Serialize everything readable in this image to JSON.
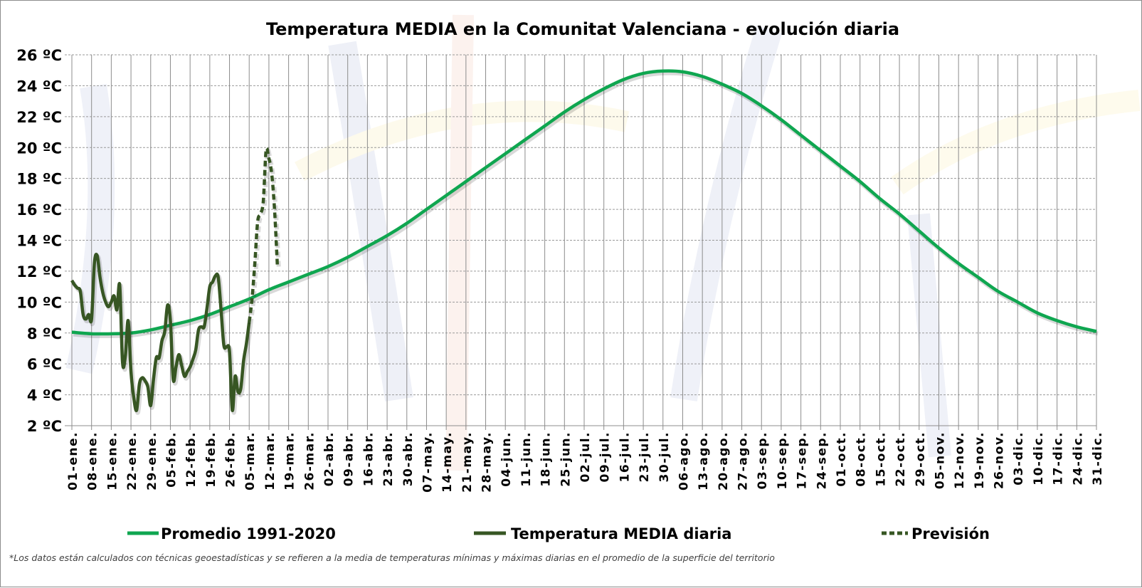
{
  "chart_data": {
    "type": "line",
    "title": "Temperatura MEDIA en la Comunitat Valenciana - evolución diaria",
    "xlabel": "",
    "ylabel": "",
    "ylim": [
      2,
      26
    ],
    "yticks": [
      "2 ºC",
      "4 ºC",
      "6 ºC",
      "8 ºC",
      "10 ºC",
      "12 ºC",
      "14 ºC",
      "16 ºC",
      "18 ºC",
      "20 ºC",
      "22 ºC",
      "24 ºC",
      "26 ºC"
    ],
    "ytick_values": [
      2,
      4,
      6,
      8,
      10,
      12,
      14,
      16,
      18,
      20,
      22,
      24,
      26
    ],
    "x_unit": "day of year",
    "xlim": [
      1,
      365
    ],
    "grid": true,
    "legend_position": "bottom",
    "xtick_labels": [
      "01-ene.",
      "08-ene.",
      "15-ene.",
      "22-ene.",
      "29-ene.",
      "05-feb.",
      "12-feb.",
      "19-feb.",
      "26-feb.",
      "05-mar.",
      "12-mar.",
      "19-mar.",
      "26-mar.",
      "02-abr.",
      "09-abr.",
      "16-abr.",
      "23-abr.",
      "30-abr.",
      "07-may.",
      "14-may.",
      "21-may.",
      "28-may.",
      "04-jun.",
      "11-jun.",
      "18-jun.",
      "25-jun.",
      "02-jul.",
      "09-jul.",
      "16-jul.",
      "23-jul.",
      "30-jul.",
      "06-ago.",
      "13-ago.",
      "20-ago.",
      "27-ago.",
      "03-sep.",
      "10-sep.",
      "17-sep.",
      "24-sep.",
      "01-oct.",
      "08-oct.",
      "15-oct.",
      "22-oct.",
      "29-oct.",
      "05-nov.",
      "12-nov.",
      "19-nov.",
      "26-nov.",
      "03-dic.",
      "10-dic.",
      "17-dic.",
      "24-dic.",
      "31-dic."
    ],
    "series": [
      {
        "name": "Promedio 1991-2020",
        "color": "#0fa650",
        "style": "solid",
        "x_start_day": 1,
        "x_step_days": 7,
        "values": [
          8.05,
          7.95,
          7.95,
          8.0,
          8.2,
          8.5,
          8.8,
          9.2,
          9.7,
          10.2,
          10.8,
          11.3,
          11.8,
          12.3,
          12.9,
          13.6,
          14.3,
          15.1,
          16.0,
          16.9,
          17.8,
          18.7,
          19.6,
          20.5,
          21.4,
          22.3,
          23.1,
          23.8,
          24.4,
          24.8,
          24.95,
          24.9,
          24.6,
          24.1,
          23.5,
          22.7,
          21.8,
          20.8,
          19.8,
          18.8,
          17.8,
          16.7,
          15.7,
          14.6,
          13.5,
          12.5,
          11.6,
          10.7,
          10.0,
          9.3,
          8.8,
          8.4,
          8.1
        ]
      },
      {
        "name": "Temperatura MEDIA diaria",
        "color": "#375623",
        "style": "solid",
        "x_start_day": 1,
        "x_step_days": 1,
        "values": [
          11.4,
          11.1,
          10.9,
          10.7,
          9.2,
          8.9,
          9.2,
          8.9,
          12.5,
          13.0,
          11.6,
          10.6,
          10.0,
          9.7,
          10.0,
          10.4,
          9.5,
          11.1,
          6.1,
          6.5,
          8.8,
          5.5,
          3.8,
          3.0,
          4.7,
          5.1,
          4.9,
          4.5,
          3.3,
          5.0,
          6.4,
          6.4,
          7.5,
          8.1,
          9.8,
          8.8,
          5.0,
          5.8,
          6.6,
          5.9,
          5.2,
          5.5,
          5.8,
          6.3,
          6.9,
          8.2,
          8.4,
          8.4,
          9.6,
          11.0,
          11.3,
          11.7,
          11.6,
          9.5,
          7.2,
          7.1,
          6.8,
          3.0,
          5.2,
          4.2,
          4.4,
          6.2,
          7.3,
          8.7
        ]
      },
      {
        "name": "Previsión",
        "color": "#375623",
        "style": "dashed",
        "x_start_day": 64,
        "x_step_days": 1,
        "values": [
          8.7,
          10.2,
          12.5,
          15.2,
          15.7,
          16.5,
          19.8,
          19.3,
          18.3,
          16.0,
          12.4
        ]
      }
    ],
    "footnote": "*Los datos están calculados con técnicas geoestadísticas y se refieren a la media de temperaturas mínimas y máximas diarias en el promedio de la superficie del territorio"
  }
}
